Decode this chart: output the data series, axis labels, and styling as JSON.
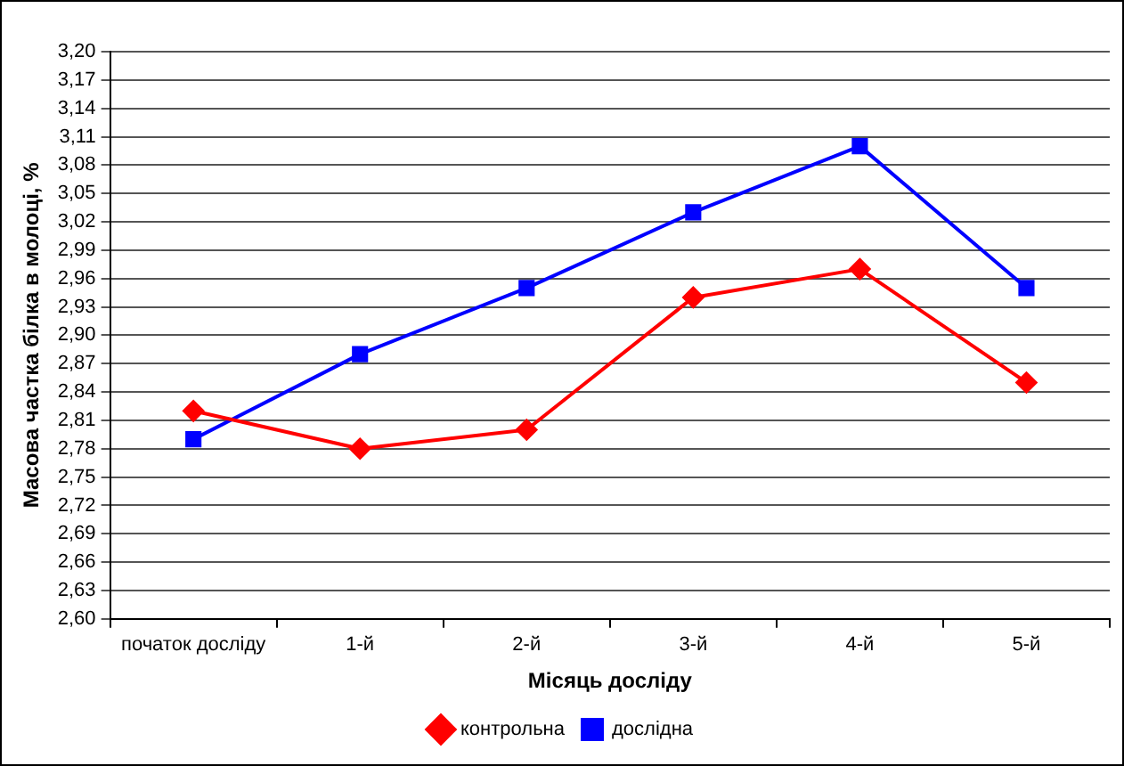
{
  "chart_data": {
    "type": "line",
    "xlabel": "Місяць досліду",
    "ylabel": "Масова частка білка в молоці, %",
    "categories": [
      "початок досліду",
      "1-й",
      "2-й",
      "3-й",
      "4-й",
      "5-й"
    ],
    "series": [
      {
        "name": "контрольна",
        "color": "#ff0000",
        "marker": "diamond",
        "values": [
          2.82,
          2.78,
          2.8,
          2.94,
          2.97,
          2.85
        ]
      },
      {
        "name": "дослідна",
        "color": "#0000ff",
        "marker": "square",
        "values": [
          2.79,
          2.88,
          2.95,
          3.03,
          3.1,
          2.95
        ]
      }
    ],
    "ylim": [
      2.6,
      3.2
    ],
    "yticks": [
      {
        "value": 2.6,
        "label": "2,60"
      },
      {
        "value": 2.63,
        "label": "2,63"
      },
      {
        "value": 2.66,
        "label": "2,66"
      },
      {
        "value": 2.69,
        "label": "2,69"
      },
      {
        "value": 2.72,
        "label": "2,72"
      },
      {
        "value": 2.75,
        "label": "2,75"
      },
      {
        "value": 2.78,
        "label": "2,78"
      },
      {
        "value": 2.81,
        "label": "2,81"
      },
      {
        "value": 2.84,
        "label": "2,84"
      },
      {
        "value": 2.87,
        "label": "2,87"
      },
      {
        "value": 2.9,
        "label": "2,90"
      },
      {
        "value": 2.93,
        "label": "2,93"
      },
      {
        "value": 2.96,
        "label": "2,96"
      },
      {
        "value": 2.99,
        "label": "2,99"
      },
      {
        "value": 3.02,
        "label": "3,02"
      },
      {
        "value": 3.05,
        "label": "3,05"
      },
      {
        "value": 3.08,
        "label": "3,08"
      },
      {
        "value": 3.11,
        "label": "3,11"
      },
      {
        "value": 3.14,
        "label": "3,14"
      },
      {
        "value": 3.17,
        "label": "3,17"
      },
      {
        "value": 3.2,
        "label": "3,20"
      }
    ],
    "grid": "y",
    "legend": "bottom",
    "line_style": "solid"
  }
}
